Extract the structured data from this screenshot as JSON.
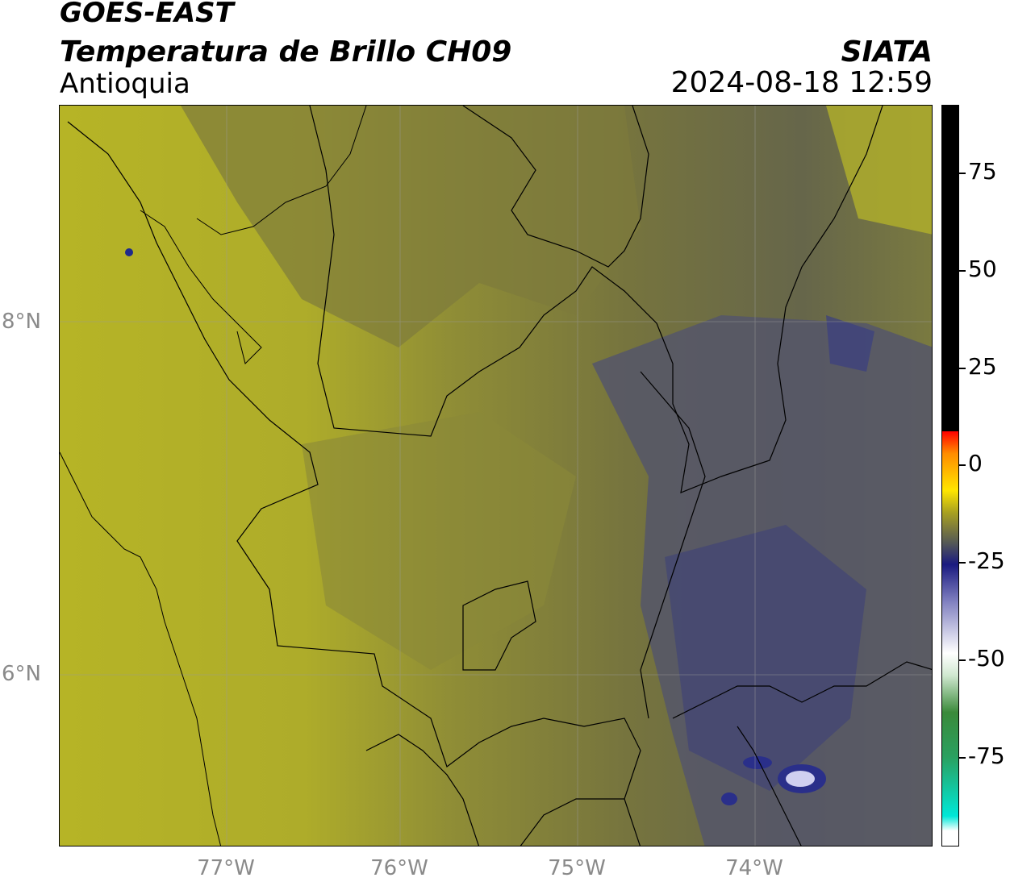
{
  "header": {
    "satellite": "GOES-EAST",
    "product": "Temperatura de Brillo CH09",
    "region": "Antioquia",
    "org": "SIATA",
    "datetime": "2024-08-18 12:59"
  },
  "axes": {
    "lat_labels": [
      "8°N",
      "6°N"
    ],
    "lon_labels": [
      "77°W",
      "76°W",
      "75°W",
      "74°W"
    ]
  },
  "colorbar": {
    "ticks": [
      "75",
      "50",
      "25",
      "0",
      "-25",
      "-50",
      "-75"
    ]
  },
  "colors": {
    "warm_yellow": "#b9b624",
    "mid_olive": "#807e3a",
    "cool_gray": "#54545c",
    "cold_blue": "#2a2f80",
    "coldest_white": "#d8d8f0"
  }
}
